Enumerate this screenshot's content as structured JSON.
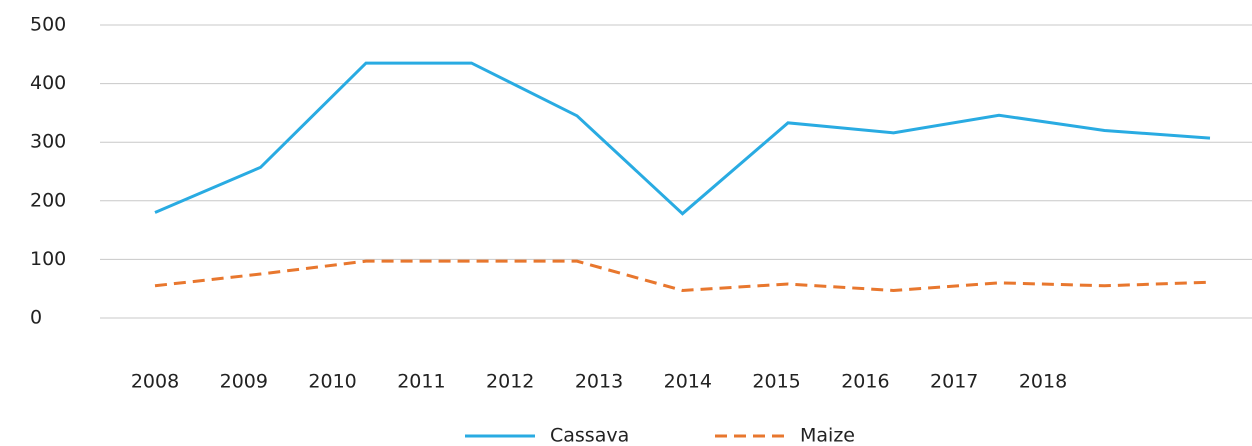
{
  "chart_data": {
    "type": "line",
    "categories": [
      "2008",
      "2009",
      "2010",
      "2011",
      "2012",
      "2013",
      "2014",
      "2015",
      "2016",
      "2017",
      "2018"
    ],
    "series": [
      {
        "name": "Cassava",
        "color": "#29abe2",
        "dash": false,
        "values": [
          180,
          257,
          435,
          435,
          345,
          178,
          333,
          316,
          346,
          320,
          307
        ]
      },
      {
        "name": "Maize",
        "color": "#e8772e",
        "dash": true,
        "values": [
          55,
          75,
          97,
          97,
          97,
          47,
          58,
          47,
          60,
          55,
          61
        ]
      }
    ],
    "ylim": [
      0,
      500
    ],
    "yticks": [
      0,
      100,
      200,
      300,
      400,
      500
    ],
    "grid": true,
    "legend": "bottom"
  }
}
